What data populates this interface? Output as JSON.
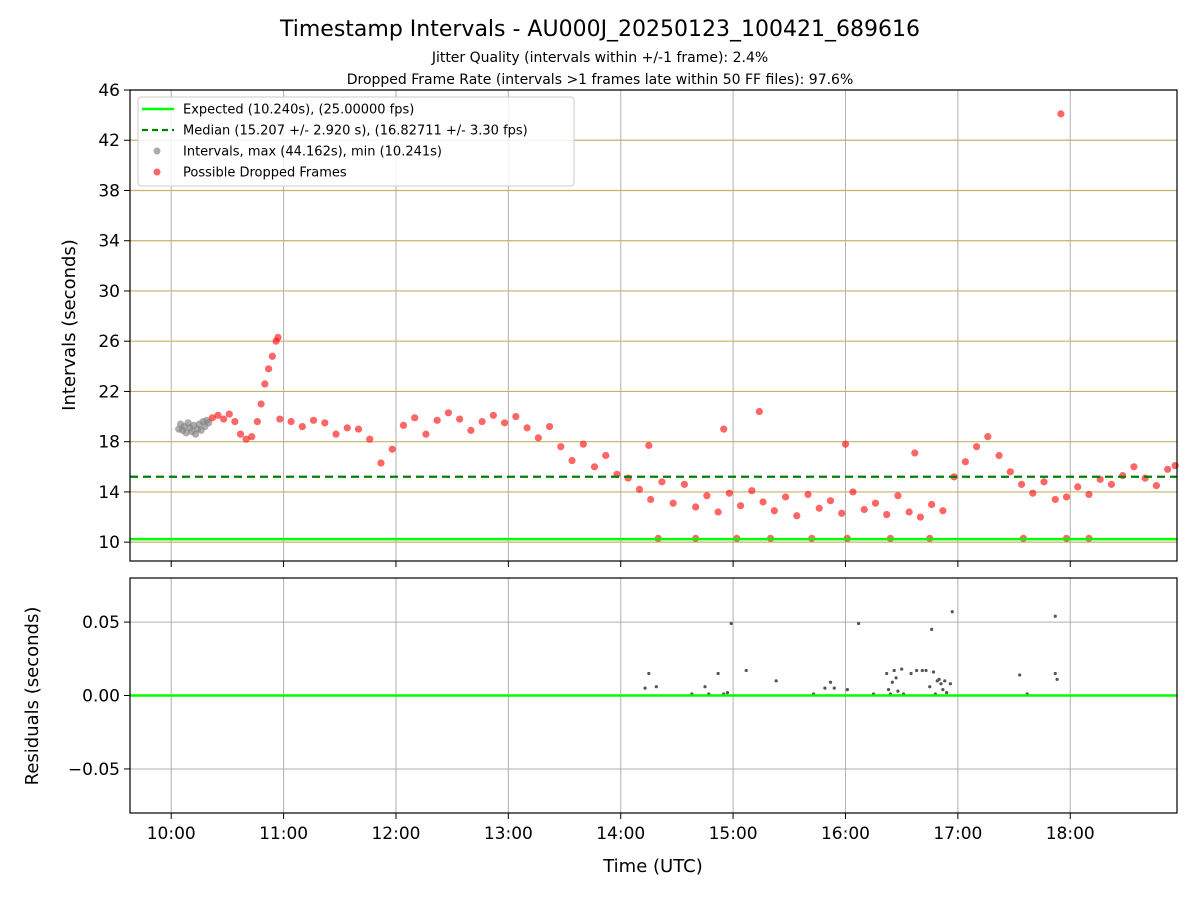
{
  "title": "Timestamp Intervals - AU000J_20250123_100421_689616",
  "subtitle_lines": [
    "Jitter Quality (intervals within +/-1 frame): 2.4%",
    "Dropped Frame Rate (intervals >1 frames late within 50 FF files): 97.6%"
  ],
  "colors": {
    "expected": "#00ff00",
    "median": "#008000",
    "normal_points": "#808080",
    "dropped_points": "#ff0000",
    "hgrid_top": "#c8b26a",
    "grid": "#b0b0b0",
    "residual_points": "#555555"
  },
  "chart_data": [
    {
      "type": "scatter",
      "panel": "top",
      "xlabel": "",
      "ylabel": "Intervals (seconds)",
      "x_range": [
        "09:38",
        "18:57"
      ],
      "ylim": [
        8.5,
        46.0
      ],
      "y_ticks": [
        10,
        14,
        18,
        22,
        26,
        30,
        34,
        38,
        42,
        46
      ],
      "x_ticks": [
        "10:00",
        "11:00",
        "12:00",
        "13:00",
        "14:00",
        "15:00",
        "16:00",
        "17:00",
        "18:00"
      ],
      "grid": "on",
      "legend_position": "top-left",
      "legend": [
        "Expected (10.240s), (25.00000 fps)",
        "Median (15.207 +/- 2.920 s), (16.82711 +/- 3.30 fps)",
        "Intervals, max (44.162s), min (10.241s)",
        "Possible Dropped Frames"
      ],
      "expected_interval": 10.24,
      "median_interval": 15.207,
      "series": [
        {
          "name": "Intervals, max (44.162s), min (10.241s)",
          "points": [
            [
              "10:04",
              19.0
            ],
            [
              "10:05",
              19.4
            ],
            [
              "10:06",
              18.9
            ],
            [
              "10:07",
              19.2
            ],
            [
              "10:08",
              18.7
            ],
            [
              "10:09",
              19.5
            ],
            [
              "10:10",
              19.1
            ],
            [
              "10:11",
              18.8
            ],
            [
              "10:12",
              19.3
            ],
            [
              "10:13",
              18.6
            ],
            [
              "10:14",
              19.0
            ],
            [
              "10:15",
              19.4
            ],
            [
              "10:16",
              18.9
            ],
            [
              "10:17",
              19.6
            ],
            [
              "10:18",
              19.2
            ],
            [
              "10:19",
              19.7
            ],
            [
              "10:20",
              19.5
            ]
          ]
        },
        {
          "name": "Possible Dropped Frames",
          "points": [
            [
              "10:22",
              19.9
            ],
            [
              "10:25",
              20.1
            ],
            [
              "10:28",
              19.8
            ],
            [
              "10:31",
              20.2
            ],
            [
              "10:34",
              19.6
            ],
            [
              "10:37",
              18.6
            ],
            [
              "10:40",
              18.2
            ],
            [
              "10:43",
              18.4
            ],
            [
              "10:46",
              19.6
            ],
            [
              "10:48",
              21.0
            ],
            [
              "10:50",
              22.6
            ],
            [
              "10:52",
              23.8
            ],
            [
              "10:54",
              24.8
            ],
            [
              "10:56",
              26.0
            ],
            [
              "10:57",
              26.3
            ],
            [
              "10:58",
              19.8
            ],
            [
              "11:04",
              19.6
            ],
            [
              "11:10",
              19.2
            ],
            [
              "11:16",
              19.7
            ],
            [
              "11:22",
              19.5
            ],
            [
              "11:28",
              18.6
            ],
            [
              "11:34",
              19.1
            ],
            [
              "11:40",
              19.0
            ],
            [
              "11:46",
              18.2
            ],
            [
              "11:52",
              16.3
            ],
            [
              "11:58",
              17.4
            ],
            [
              "12:04",
              19.3
            ],
            [
              "12:10",
              19.9
            ],
            [
              "12:16",
              18.6
            ],
            [
              "12:22",
              19.7
            ],
            [
              "12:28",
              20.3
            ],
            [
              "12:34",
              19.8
            ],
            [
              "12:40",
              18.9
            ],
            [
              "12:46",
              19.6
            ],
            [
              "12:52",
              20.1
            ],
            [
              "12:58",
              19.5
            ],
            [
              "13:04",
              20.0
            ],
            [
              "13:10",
              19.1
            ],
            [
              "13:16",
              18.3
            ],
            [
              "13:22",
              19.2
            ],
            [
              "13:28",
              17.6
            ],
            [
              "13:34",
              16.5
            ],
            [
              "13:40",
              17.8
            ],
            [
              "13:46",
              16.0
            ],
            [
              "13:52",
              16.9
            ],
            [
              "13:58",
              15.4
            ],
            [
              "14:04",
              15.1
            ],
            [
              "14:10",
              14.2
            ],
            [
              "14:16",
              13.4
            ],
            [
              "14:22",
              14.8
            ],
            [
              "14:28",
              13.1
            ],
            [
              "14:34",
              14.6
            ],
            [
              "14:40",
              12.8
            ],
            [
              "14:46",
              13.7
            ],
            [
              "14:52",
              12.4
            ],
            [
              "14:58",
              13.9
            ],
            [
              "15:04",
              12.9
            ],
            [
              "15:10",
              14.1
            ],
            [
              "15:16",
              13.2
            ],
            [
              "15:22",
              12.5
            ],
            [
              "15:28",
              13.6
            ],
            [
              "15:34",
              12.1
            ],
            [
              "15:40",
              13.8
            ],
            [
              "15:46",
              12.7
            ],
            [
              "15:52",
              13.3
            ],
            [
              "15:58",
              12.3
            ],
            [
              "16:04",
              14.0
            ],
            [
              "16:10",
              12.6
            ],
            [
              "16:16",
              13.1
            ],
            [
              "16:22",
              12.2
            ],
            [
              "16:28",
              13.7
            ],
            [
              "16:34",
              12.4
            ],
            [
              "16:40",
              12.0
            ],
            [
              "16:46",
              13.0
            ],
            [
              "16:52",
              12.5
            ],
            [
              "16:58",
              15.2
            ],
            [
              "17:04",
              16.4
            ],
            [
              "17:10",
              17.6
            ],
            [
              "17:16",
              18.4
            ],
            [
              "17:22",
              16.9
            ],
            [
              "17:28",
              15.6
            ],
            [
              "17:34",
              14.6
            ],
            [
              "17:40",
              13.9
            ],
            [
              "17:46",
              14.8
            ],
            [
              "17:52",
              13.4
            ],
            [
              "17:55",
              44.1
            ],
            [
              "17:58",
              13.6
            ],
            [
              "18:04",
              14.4
            ],
            [
              "18:10",
              13.8
            ],
            [
              "18:16",
              15.0
            ],
            [
              "18:22",
              14.6
            ],
            [
              "18:28",
              15.3
            ],
            [
              "18:34",
              16.0
            ],
            [
              "18:40",
              15.1
            ],
            [
              "18:46",
              14.5
            ],
            [
              "18:52",
              15.8
            ],
            [
              "18:56",
              16.1
            ],
            [
              "14:20",
              10.3
            ],
            [
              "14:40",
              10.3
            ],
            [
              "15:02",
              10.3
            ],
            [
              "15:20",
              10.3
            ],
            [
              "15:42",
              10.3
            ],
            [
              "16:01",
              10.3
            ],
            [
              "16:24",
              10.3
            ],
            [
              "16:45",
              10.3
            ],
            [
              "17:35",
              10.3
            ],
            [
              "17:58",
              10.3
            ],
            [
              "18:10",
              10.3
            ],
            [
              "15:14",
              20.4
            ],
            [
              "14:55",
              19.0
            ],
            [
              "14:15",
              17.7
            ],
            [
              "16:00",
              17.8
            ],
            [
              "16:37",
              17.1
            ]
          ]
        }
      ]
    },
    {
      "type": "scatter",
      "panel": "bottom",
      "xlabel": "Time (UTC)",
      "ylabel": "Residuals (seconds)",
      "x_range": [
        "09:38",
        "18:57"
      ],
      "ylim": [
        -0.08,
        0.08
      ],
      "y_ticks": [
        -0.05,
        0.0,
        0.05
      ],
      "y_tick_labels": [
        "−0.05",
        "0.00",
        "0.05"
      ],
      "x_ticks": [
        "10:00",
        "11:00",
        "12:00",
        "13:00",
        "14:00",
        "15:00",
        "16:00",
        "17:00",
        "18:00"
      ],
      "grid": "on",
      "zero_line": 0.0,
      "points": [
        [
          "14:13",
          0.005
        ],
        [
          "14:15",
          0.015
        ],
        [
          "14:19",
          0.006
        ],
        [
          "14:38",
          0.001
        ],
        [
          "14:45",
          0.006
        ],
        [
          "14:47",
          0.001
        ],
        [
          "14:52",
          0.015
        ],
        [
          "14:55",
          0.001
        ],
        [
          "14:57",
          0.002
        ],
        [
          "14:59",
          0.049
        ],
        [
          "15:07",
          0.017
        ],
        [
          "15:23",
          0.01
        ],
        [
          "15:43",
          0.001
        ],
        [
          "15:49",
          0.005
        ],
        [
          "15:52",
          0.009
        ],
        [
          "15:54",
          0.005
        ],
        [
          "16:01",
          0.004
        ],
        [
          "16:07",
          0.049
        ],
        [
          "16:15",
          0.001
        ],
        [
          "16:22",
          0.015
        ],
        [
          "16:23",
          0.004
        ],
        [
          "16:24",
          0.001
        ],
        [
          "16:25",
          0.009
        ],
        [
          "16:26",
          0.017
        ],
        [
          "16:27",
          0.012
        ],
        [
          "16:28",
          0.003
        ],
        [
          "16:30",
          0.018
        ],
        [
          "16:31",
          0.001
        ],
        [
          "16:35",
          0.015
        ],
        [
          "16:38",
          0.017
        ],
        [
          "16:41",
          0.017
        ],
        [
          "16:43",
          0.017
        ],
        [
          "16:45",
          0.006
        ],
        [
          "16:46",
          0.045
        ],
        [
          "16:47",
          0.016
        ],
        [
          "16:48",
          0.001
        ],
        [
          "16:49",
          0.01
        ],
        [
          "16:50",
          0.011
        ],
        [
          "16:51",
          0.008
        ],
        [
          "16:52",
          0.004
        ],
        [
          "16:53",
          0.01
        ],
        [
          "16:54",
          0.002
        ],
        [
          "16:56",
          0.008
        ],
        [
          "16:57",
          0.057
        ],
        [
          "17:33",
          0.014
        ],
        [
          "17:37",
          0.001
        ],
        [
          "17:52",
          0.054
        ],
        [
          "17:52",
          0.015
        ],
        [
          "17:53",
          0.011
        ]
      ]
    }
  ]
}
